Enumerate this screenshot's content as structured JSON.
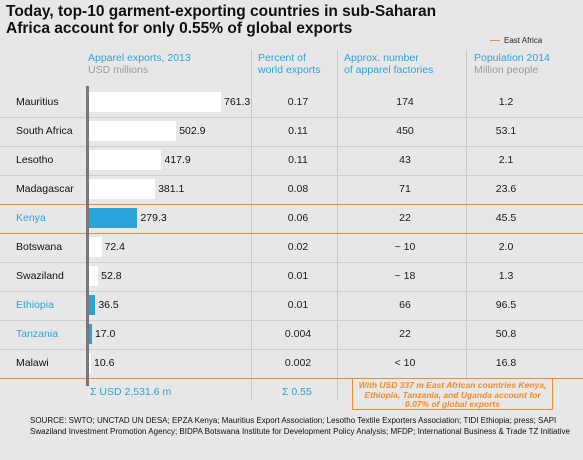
{
  "title": "Today, top-10 garment-exporting countries in sub-Saharan Africa account for only 0.55% of global exports",
  "legend": {
    "label": "East Africa",
    "color": "#f28c28"
  },
  "headers": {
    "exports": "Apparel exports, 2013",
    "exports_unit": "USD millions",
    "percent_line1": "Percent of",
    "percent_line2": "world exports",
    "factories_line1": "Approx. number",
    "factories_line2": "of apparel factories",
    "population": "Population 2014",
    "population_unit": "Million people"
  },
  "totals": {
    "exports": "Σ USD 2,531.6 m",
    "percent": "Σ 0.55"
  },
  "note": "With USD 337 m East African countries Kenya, Ethiopia, Tanzania, and Uganda account for 0.07% of global exports",
  "source": "SOURCE: SWTO; UNCTAD UN DESA; EPZA Kenya; Mauritius Export Association; Lesotho Textile Exporters Association; TIDI Ethiopia; press; SAPI Swaziland Investment Promotion Agency; BIDPA Botswana Institute for Development Policy Analysis; MFDP; International Business & Trade TZ Initiative",
  "colors": {
    "highlight": "#2aa3db",
    "bar": "#ffffff",
    "east_africa": "#f28c28",
    "background": "#e7e7e7"
  },
  "chart_data": {
    "type": "bar",
    "categories": [
      "Mauritius",
      "South Africa",
      "Lesotho",
      "Madagascar",
      "Kenya",
      "Botswana",
      "Swaziland",
      "Ethiopia",
      "Tanzania",
      "Malawi"
    ],
    "values": [
      761.3,
      502.9,
      417.9,
      381.1,
      279.3,
      72.4,
      52.8,
      36.5,
      17.0,
      10.6
    ],
    "value_labels": [
      "761.3",
      "502.9",
      "417.9",
      "381.1",
      "279.3",
      "72.4",
      "52.8",
      "36.5",
      "17.0",
      "10.6"
    ],
    "highlighted": [
      false,
      false,
      false,
      false,
      true,
      false,
      false,
      true,
      true,
      false
    ],
    "percent_world_exports": [
      "0.17",
      "0.11",
      "0.11",
      "0.08",
      "0.06",
      "0.02",
      "0.01",
      "0.01",
      "0.004",
      "0.002"
    ],
    "apparel_factories": [
      "174",
      "450",
      "43",
      "71",
      "22",
      "~ 10",
      "~ 18",
      "66",
      "22",
      "< 10"
    ],
    "population_2014": [
      "1.2",
      "53.1",
      "2.1",
      "23.6",
      "45.5",
      "2.0",
      "1.3",
      "96.5",
      "50.8",
      "16.8"
    ],
    "xlabel": "Apparel exports, 2013",
    "ylabel": "",
    "unit": "USD millions",
    "xlim": [
      0,
      761.3
    ]
  }
}
